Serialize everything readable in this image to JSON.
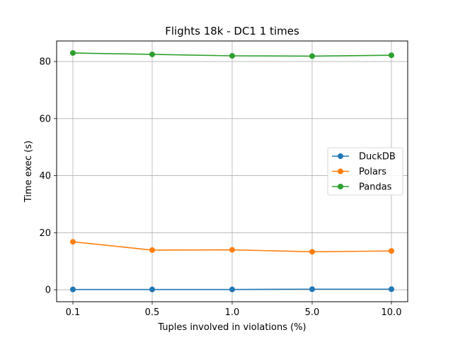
{
  "chart_data": {
    "type": "line",
    "title": "Flights 18k - DC1 1 times",
    "xlabel": "Tuples involved in violations (%)",
    "ylabel": "Time exec (s)",
    "categories": [
      "0.1",
      "0.5",
      "1.0",
      "5.0",
      "10.0"
    ],
    "ylim": [
      -4.2,
      87.2
    ],
    "yticks": [
      0,
      20,
      40,
      60,
      80
    ],
    "grid": true,
    "legend_position": "center-right",
    "series": [
      {
        "name": "DuckDB",
        "color": "#1f77b4",
        "values": [
          0.1,
          0.1,
          0.1,
          0.2,
          0.2
        ]
      },
      {
        "name": "Polars",
        "color": "#ff7f0e",
        "values": [
          16.8,
          13.9,
          14.0,
          13.3,
          13.6
        ]
      },
      {
        "name": "Pandas",
        "color": "#2ca02c",
        "values": [
          83.0,
          82.5,
          82.0,
          81.9,
          82.2
        ]
      }
    ]
  }
}
